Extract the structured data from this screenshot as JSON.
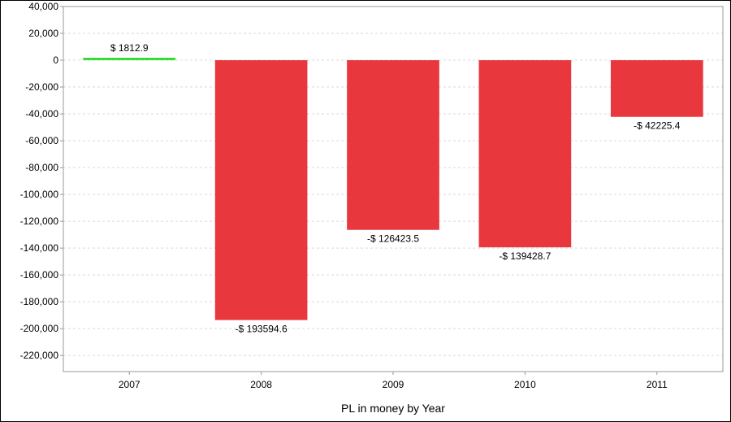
{
  "chart_data": {
    "type": "bar",
    "title": "",
    "xlabel": "PL in money by Year",
    "ylabel": "",
    "categories": [
      "2007",
      "2008",
      "2009",
      "2010",
      "2011"
    ],
    "values": [
      1812.9,
      -193594.6,
      -126423.5,
      -139428.7,
      -42225.4
    ],
    "data_labels": [
      "$ 1812.9",
      "-$ 193594.6",
      "-$ 126423.5",
      "-$ 139428.7",
      "-$ 42225.4"
    ],
    "ylim": [
      -232000,
      40000
    ],
    "y_ticks": [
      40000,
      20000,
      0,
      -20000,
      -40000,
      -60000,
      -80000,
      -100000,
      -120000,
      -140000,
      -160000,
      -180000,
      -200000,
      -220000
    ],
    "y_tick_labels": [
      "40,000",
      "20,000",
      "0",
      "-20,000",
      "-40,000",
      "-60,000",
      "-80,000",
      "-100,000",
      "-120,000",
      "-140,000",
      "-160,000",
      "-180,000",
      "-200,000",
      "-220,000"
    ],
    "grid": true,
    "legend": "none",
    "colors": {
      "positive": "#33dd33",
      "negative": "#e8383d",
      "grid": "#d9d9d9",
      "axis": "#999999"
    }
  }
}
